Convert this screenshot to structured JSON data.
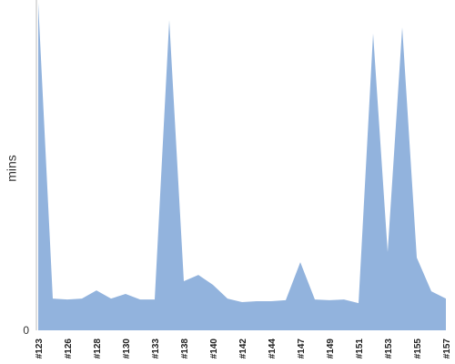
{
  "chart_data": {
    "type": "area",
    "ylabel": "mins",
    "categories": [
      "#123",
      null,
      "#126",
      null,
      "#128",
      null,
      "#130",
      null,
      "#133",
      null,
      "#138",
      null,
      "#140",
      null,
      "#142",
      null,
      "#144",
      null,
      "#147",
      null,
      "#149",
      null,
      "#151",
      null,
      "#153",
      null,
      "#155",
      null,
      "#157"
    ],
    "values": [
      100,
      9.7,
      9.4,
      9.7,
      12.2,
      9.7,
      11.1,
      9.4,
      9.4,
      94.7,
      15,
      16.9,
      13.9,
      9.7,
      8.6,
      8.9,
      8.9,
      9.2,
      20.8,
      9.4,
      9.2,
      9.4,
      8.3,
      90.6,
      23.9,
      92.5,
      22.2,
      11.9,
      9.7
    ],
    "color": "#92b3dd",
    "ylim": [
      0,
      100
    ],
    "yticks": [
      0
    ]
  }
}
